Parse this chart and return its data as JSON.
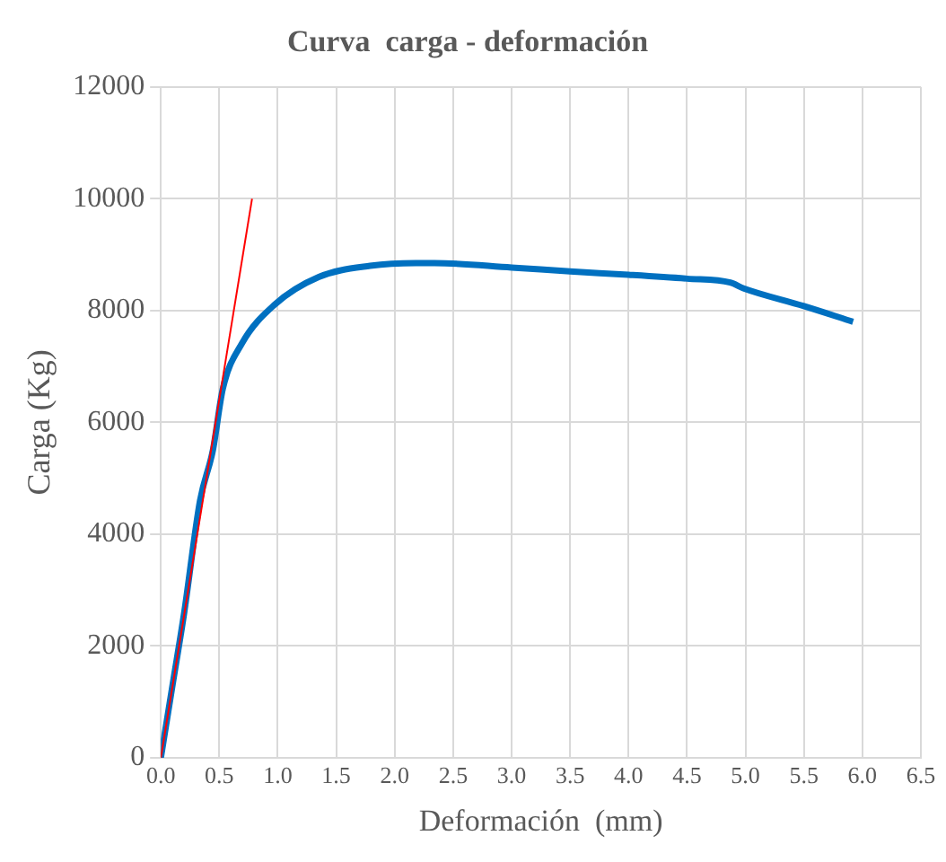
{
  "chart_data": {
    "type": "line",
    "title": "Curva  carga - deformación",
    "xlabel": "Deformación  (mm)",
    "ylabel": "Carga (Kg)",
    "x": [
      0,
      0.1,
      0.2,
      0.335,
      0.445,
      0.53,
      0.69,
      0.97,
      1.35,
      1.79,
      2.18,
      2.34,
      3.0,
      3.5,
      4.0,
      4.5,
      4.87,
      4.98,
      5.5,
      5.92
    ],
    "series": [
      {
        "color": "#0070c0",
        "values": [
          0,
          1300,
          2600,
          4600,
          5500,
          6600,
          7400,
          8100,
          8600,
          8800,
          8850,
          8850,
          8770,
          8700,
          8640,
          8570,
          8500,
          8400,
          8080,
          7800
        ]
      },
      {
        "type": "line",
        "color": "#ff0000",
        "x": [
          0,
          0.78
        ],
        "values": [
          0,
          10000
        ]
      }
    ],
    "xlim": [
      0,
      6.5
    ],
    "xticks": [
      {
        "value": 0,
        "label": "0.0"
      },
      {
        "value": 0.5,
        "label": "0.5"
      },
      {
        "value": 1,
        "label": "1.0"
      },
      {
        "value": 1.5,
        "label": "1.5"
      },
      {
        "value": 2,
        "label": "2.0"
      },
      {
        "value": 2.5,
        "label": "2.5"
      },
      {
        "value": 3,
        "label": "3.0"
      },
      {
        "value": 3.5,
        "label": "3.5"
      },
      {
        "value": 4,
        "label": "4.0"
      },
      {
        "value": 4.5,
        "label": "4.5"
      },
      {
        "value": 5,
        "label": "5.0"
      },
      {
        "value": 5.5,
        "label": "5.5"
      },
      {
        "value": 6,
        "label": "6.0"
      },
      {
        "value": 6.5,
        "label": "6.5"
      }
    ],
    "ylim": [
      0,
      12000
    ],
    "yticks": [
      0,
      2000,
      4000,
      6000,
      8000,
      10000,
      12000
    ],
    "grid": true,
    "legend": false,
    "marker": "none"
  }
}
